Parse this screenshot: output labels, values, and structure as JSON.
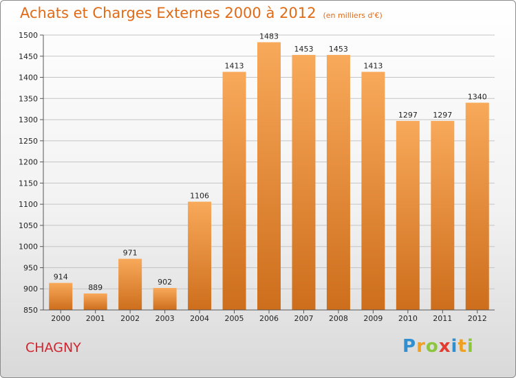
{
  "header": {
    "title": "Achats et Charges Externes 2000 à 2012",
    "subtitle": "(en milliers d'€)"
  },
  "commune": "CHAGNY",
  "logo": {
    "letters": [
      "P",
      "r",
      "o",
      "x",
      "i",
      "t",
      "i"
    ],
    "colors": [
      "#2f8fd0",
      "#f0a020",
      "#8cc63f",
      "#e53a2f",
      "#2f8fd0",
      "#f0a020",
      "#8cc63f"
    ]
  },
  "colors": {
    "bar_top": "#f8a95a",
    "bar_bottom": "#cd6e1c",
    "title": "#e06a16"
  },
  "chart_data": {
    "type": "bar",
    "categories": [
      "2000",
      "2001",
      "2002",
      "2003",
      "2004",
      "2005",
      "2006",
      "2007",
      "2008",
      "2009",
      "2010",
      "2011",
      "2012"
    ],
    "values": [
      914,
      889,
      971,
      902,
      1106,
      1413,
      1483,
      1453,
      1453,
      1413,
      1297,
      1297,
      1340
    ],
    "value_labels": [
      "914",
      "889",
      "971",
      "902",
      "1106",
      "1413",
      "1483",
      "1453",
      "1453",
      "1413",
      "1297",
      "1297",
      "1340"
    ],
    "yticks": [
      850,
      900,
      950,
      1000,
      1050,
      1100,
      1150,
      1200,
      1250,
      1300,
      1350,
      1400,
      1450,
      1500
    ],
    "ylim": [
      850,
      1500
    ],
    "grid": true,
    "xlabel": "",
    "ylabel": ""
  }
}
